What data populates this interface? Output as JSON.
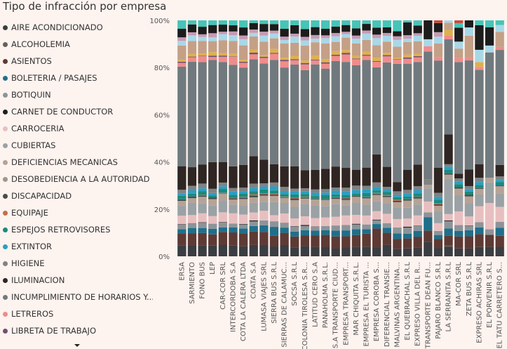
{
  "chart_data": {
    "type": "bar",
    "stacked": true,
    "normalized": true,
    "title": "Tipo de infracción por empresa",
    "xlabel": "",
    "ylabel": "",
    "ylim": [
      0,
      100
    ],
    "y_ticks": [
      "0%",
      "20%",
      "40%",
      "60%",
      "80%",
      "100%"
    ],
    "grid": false,
    "legend_position": "left",
    "categories": [
      "ERSA",
      "SARMIENTO",
      "FONO BUS",
      "LEP",
      "CAR-COR SRL",
      "INTERCORDOBA S.A",
      "COTA LA CALERA LTDA",
      "COATA S.A",
      "LUMASA VIAJES SRL",
      "SIERRA BUS S.R.L",
      "SIERRAS DE CALAMUC...",
      "SOCSA S.R.L",
      "COLONIA TIROLESA S.R...",
      "LATITUD CERO S.A",
      "PANAHOLMA S.R.L.",
      "S.A TRANSPORTE CIUD...",
      "EMPRESA TRANSPORT...",
      "MAR CHIQUITA S.R.L.",
      "EMPRESA EL TURISTA ...",
      "EMPRESA COROBA S...",
      "DIFERENCIAL TRANSIE...",
      "MALVINAS ARGENTINA...",
      "EL QUEBRACHAL S.R.L",
      "EXPRESO VILLA DEL R...",
      "TRANSPORTE DEAN FU...",
      "PAJARO BLANCO S.R.L",
      "LA SERRANITA S.R.L",
      "MA-COR SRL",
      "ZETA BUS S.R.L",
      "EXPRESO ACHIRAS SRL",
      "EL PORVENIR S.R.L",
      "EL TATU CARRETERO S..."
    ],
    "series": [
      {
        "name": "AIRE ACONDICIONADO",
        "color": "#3a3d42",
        "values": [
          4.7,
          4.7,
          4.7,
          4.6,
          4.9,
          4.7,
          4.2,
          4.7,
          4.8,
          4.2,
          4.7,
          3.8,
          4.3,
          4.1,
          3.9,
          3.3,
          3.9,
          4.1,
          4.1,
          3.6,
          5.0,
          3.3,
          3.4,
          3.8,
          6.2,
          3.7,
          4.0,
          3.4,
          3.3,
          3.8,
          4.1,
          4.1
        ]
      },
      {
        "name": "ALCOHOLEMIA",
        "color": "#6a5e57",
        "values": [
          0.0,
          0.0,
          0.0,
          0.0,
          0.0,
          0.0,
          0.0,
          0.0,
          0.0,
          0.0,
          0.0,
          0.0,
          0.0,
          0.0,
          0.0,
          0.0,
          0.0,
          0.0,
          0.0,
          0.0,
          0.0,
          0.0,
          0.0,
          0.0,
          0.0,
          0.0,
          0.6,
          0.0,
          0.0,
          0.0,
          0.0,
          0.0
        ]
      },
      {
        "name": "ASIENTOS",
        "color": "#5e3a34",
        "values": [
          5.0,
          5.0,
          5.2,
          4.8,
          5.4,
          5.4,
          5.5,
          5.6,
          5.3,
          4.6,
          5.1,
          4.7,
          4.5,
          4.8,
          5.3,
          5.2,
          4.7,
          5.0,
          5.5,
          8.3,
          5.1,
          4.4,
          4.3,
          4.6,
          4.7,
          4.0,
          4.0,
          5.2,
          5.2,
          5.2,
          5.3,
          4.8
        ]
      },
      {
        "name": "BOLETERIA / PASAJES",
        "color": "#1f6f8b",
        "values": [
          1.8,
          2.2,
          2.1,
          2.4,
          1.9,
          2.1,
          2.1,
          2.3,
          2.8,
          3.8,
          2.2,
          2.1,
          2.3,
          2.1,
          1.9,
          2.5,
          2.5,
          2.5,
          1.9,
          1.9,
          2.1,
          2.4,
          2.1,
          2.5,
          5.6,
          1.7,
          3.1,
          2.4,
          2.6,
          2.8,
          0.0,
          3.5
        ]
      },
      {
        "name": "BOTIQUIN",
        "color": "#8c9499",
        "values": [
          1.9,
          1.9,
          2.2,
          2.0,
          2.1,
          1.7,
          1.7,
          1.9,
          2.0,
          2.4,
          1.9,
          2.1,
          1.8,
          1.7,
          1.8,
          2.0,
          2.3,
          2.0,
          2.0,
          1.6,
          2.0,
          2.4,
          2.6,
          2.2,
          2.1,
          1.8,
          3.1,
          2.5,
          1.7,
          2.1,
          2.4,
          2.5
        ]
      },
      {
        "name": "CARNET DE CONDUCTOR",
        "color": "#1e1e1e",
        "values": [
          0.2,
          0.1,
          0.2,
          0.1,
          0.2,
          0.0,
          0.2,
          0.4,
          0.0,
          0.0,
          0.1,
          0.2,
          0.4,
          0.1,
          0.0,
          0.1,
          0.0,
          0.3,
          0.0,
          0.3,
          0.0,
          0.1,
          0.4,
          0.1,
          0.0,
          0.0,
          0.3,
          0.0,
          0.2,
          0.0,
          0.0,
          0.0
        ]
      },
      {
        "name": "CARROCERIA",
        "color": "#e8bfc0",
        "values": [
          3.6,
          3.4,
          3.8,
          3.3,
          4.1,
          4.3,
          4.0,
          3.3,
          4.0,
          2.6,
          3.9,
          3.3,
          3.7,
          3.6,
          3.7,
          3.8,
          4.1,
          3.8,
          3.8,
          3.6,
          4.0,
          3.8,
          3.5,
          4.3,
          4.6,
          3.4,
          2.7,
          5.9,
          3.9,
          6.5,
          11.5,
          6.5
        ]
      },
      {
        "name": "CUBIERTAS",
        "color": "#9aa2a6",
        "values": [
          4.1,
          5.1,
          4.2,
          4.5,
          5.0,
          3.7,
          3.9,
          4.0,
          3.6,
          5.6,
          4.4,
          5.0,
          5.2,
          5.5,
          4.8,
          5.4,
          4.4,
          5.1,
          4.6,
          4.2,
          4.6,
          5.1,
          4.7,
          4.7,
          5.6,
          5.2,
          15.0,
          7.0,
          5.6,
          4.8,
          9.0,
          5.7
        ]
      },
      {
        "name": "DEFICIENCIAS MECANICAS",
        "color": "#b5a396",
        "values": [
          2.1,
          2.0,
          2.5,
          2.6,
          2.7,
          2.0,
          2.5,
          2.2,
          2.4,
          2.3,
          2.1,
          2.6,
          2.2,
          2.5,
          2.4,
          2.0,
          1.9,
          2.5,
          2.4,
          2.4,
          2.2,
          2.2,
          2.7,
          2.3,
          1.5,
          2.5,
          1.6,
          2.7,
          2.9,
          2.3,
          2.0,
          2.8
        ]
      },
      {
        "name": "DESOBEDIENCIA A LA AUTORIDAD",
        "color": "#a19590",
        "values": [
          0.1,
          0.0,
          0.3,
          0.2,
          0.3,
          0.1,
          0.2,
          0.1,
          0.3,
          0.4,
          0.0,
          0.3,
          0.1,
          0.0,
          0.3,
          0.3,
          0.4,
          0.1,
          0.3,
          0.3,
          0.4,
          0.1,
          0.4,
          0.3,
          0.0,
          0.0,
          0.0,
          0.2,
          0.0,
          0.0,
          0.0,
          0.5
        ]
      },
      {
        "name": "DISCAPACIDAD",
        "color": "#4a4c4c",
        "values": [
          0.6,
          0.7,
          0.5,
          0.6,
          0.2,
          0.6,
          0.6,
          0.8,
          0.6,
          0.6,
          0.3,
          0.7,
          0.5,
          0.3,
          0.4,
          0.5,
          0.7,
          0.5,
          0.5,
          0.5,
          0.5,
          0.6,
          0.5,
          0.7,
          0.0,
          0.6,
          0.6,
          0.6,
          0.8,
          0.3,
          0.0,
          0.3
        ]
      },
      {
        "name": "EQUIPAJE",
        "color": "#c86c4a",
        "values": [
          0.1,
          0.0,
          0.3,
          0.0,
          0.1,
          0.1,
          0.3,
          0.4,
          0.4,
          0.3,
          0.2,
          0.3,
          0.3,
          0.1,
          0.1,
          0.2,
          0.2,
          0.0,
          0.1,
          0.4,
          0.4,
          0.4,
          0.1,
          0.1,
          0.0,
          0.5,
          0.0,
          0.0,
          0.0,
          0.0,
          0.0,
          0.0
        ]
      },
      {
        "name": "ESPEJOS RETROVISORES",
        "color": "#1a8a7e",
        "values": [
          1.5,
          1.2,
          1.5,
          1.0,
          1.6,
          1.3,
          1.3,
          1.3,
          1.6,
          1.4,
          1.1,
          1.4,
          1.2,
          1.1,
          1.5,
          1.2,
          1.2,
          1.0,
          1.6,
          1.1,
          1.2,
          1.2,
          1.1,
          1.4,
          0.0,
          1.5,
          1.4,
          1.3,
          1.3,
          1.3,
          0.0,
          1.4
        ]
      },
      {
        "name": "EXTINTOR",
        "color": "#2b9ec4",
        "values": [
          1.0,
          1.4,
          1.3,
          1.0,
          1.1,
          1.4,
          1.0,
          1.4,
          1.2,
          1.7,
          1.3,
          1.2,
          1.0,
          1.4,
          1.1,
          1.6,
          1.6,
          1.4,
          1.5,
          1.4,
          0.9,
          1.0,
          1.4,
          1.4,
          0.0,
          1.3,
          1.4,
          1.2,
          1.0,
          1.2,
          0.0,
          1.0
        ]
      },
      {
        "name": "HIGIENE",
        "color": "#7f8384",
        "values": [
          1.5,
          1.9,
          2.0,
          1.8,
          1.6,
          1.5,
          1.6,
          1.8,
          1.3,
          1.7,
          1.7,
          1.3,
          1.4,
          1.4,
          1.5,
          1.3,
          1.5,
          1.9,
          1.6,
          2.0,
          1.3,
          1.6,
          1.5,
          1.6,
          2.2,
          1.8,
          1.0,
          1.3,
          1.3,
          1.7,
          0.0,
          1.5
        ]
      },
      {
        "name": "ILUMINACION",
        "color": "#2f2624",
        "values": [
          10.0,
          7.8,
          8.1,
          11.4,
          8.7,
          9.2,
          9.6,
          11.4,
          9.8,
          7.8,
          8.6,
          9.6,
          7.7,
          8.4,
          8.7,
          9.0,
          8.5,
          6.8,
          7.7,
          12.0,
          8.6,
          4.0,
          8.7,
          9.3,
          0.0,
          11.1,
          12.6,
          2.0,
          7.0,
          5.5,
          0.0,
          5.0
        ]
      },
      {
        "name": "INCUMPLIMIENTO DE HORARIOS Y...",
        "color": "#707a7e",
        "values": [
          42.2,
          44.2,
          43.3,
          43.8,
          42.3,
          43.0,
          41.3,
          40.2,
          40.0,
          44.7,
          41.3,
          43.6,
          42.5,
          45.3,
          42.8,
          45.1,
          45.4,
          44.6,
          45.6,
          37.2,
          44.7,
          52.1,
          45.8,
          43.9,
          54.2,
          47.2,
          40.0,
          48.3,
          46.3,
          38.5,
          54.8,
          49.8
        ]
      },
      {
        "name": "LETREROS",
        "color": "#f08c8c",
        "values": [
          1.6,
          1.9,
          2.5,
          1.2,
          2.2,
          3.4,
          2.0,
          2.1,
          2.3,
          2.6,
          2.6,
          1.8,
          2.4,
          1.7,
          2.1,
          2.2,
          3.2,
          2.6,
          1.8,
          2.4,
          2.6,
          1.8,
          2.1,
          2.0,
          2.2,
          1.5,
          1.5,
          1.8,
          1.5,
          1.2,
          0.0,
          1.3
        ]
      },
      {
        "name": "LIBRETA DE TRABAJO",
        "color": "#74506e",
        "values": [
          0.5,
          0.3,
          0.2,
          0.6,
          0.5,
          0.2,
          0.5,
          0.7,
          0.5,
          0.4,
          0.6,
          0.4,
          0.6,
          0.3,
          0.6,
          0.5,
          0.7,
          0.3,
          0.4,
          0.3,
          0.5,
          0.2,
          0.6,
          0.5,
          0.0,
          0.0,
          0.0,
          0.0,
          0.0,
          0.0,
          0.0,
          0.0
        ]
      },
      {
        "name": "",
        "color": "#ddb14e",
        "values": [
          0.8,
          1.2,
          1.0,
          1.5,
          1.0,
          1.2,
          0.8,
          1.3,
          0.7,
          1.7,
          0.9,
          1.5,
          1.0,
          1.8,
          1.3,
          1.6,
          1.2,
          1.1,
          1.3,
          1.4,
          1.0,
          0.7,
          1.2,
          1.0,
          0.0,
          0.0,
          2.5,
          0.0,
          0.0,
          2.0,
          0.0,
          0.0
        ]
      },
      {
        "name": "",
        "color": "#c4a087",
        "values": [
          6.0,
          5.3,
          5.3,
          4.7,
          5.5,
          5.3,
          6.1,
          5.4,
          5.5,
          4.5,
          6.0,
          5.6,
          6.4,
          5.7,
          6.7,
          3.9,
          5.3,
          5.3,
          5.0,
          5.4,
          4.8,
          4.8,
          5.4,
          5.3,
          0.0,
          6.0,
          3.0,
          4.0,
          9.0,
          0.0,
          0.0,
          6.5
        ]
      },
      {
        "name": "",
        "color": "#a8d8e8",
        "values": [
          2.0,
          2.4,
          1.7,
          1.6,
          2.6,
          2.4,
          2.6,
          1.5,
          2.6,
          2.1,
          1.4,
          2.7,
          2.2,
          1.6,
          2.3,
          2.4,
          1.5,
          2.1,
          2.7,
          3.0,
          2.5,
          3.0,
          1.5,
          2.4,
          3.0,
          3.0,
          1.0,
          3.0,
          3.5,
          5.0,
          3.0,
          3.0
        ]
      },
      {
        "name": "",
        "color": "#c79ab4",
        "values": [
          1.5,
          1.3,
          1.1,
          1.8,
          1.0,
          1.6,
          1.6,
          1.4,
          1.6,
          1.2,
          1.4,
          1.2,
          1.5,
          1.5,
          1.2,
          1.4,
          1.0,
          1.3,
          1.3,
          1.5,
          1.2,
          1.6,
          1.5,
          1.1,
          0.0,
          2.0,
          0.0,
          0.0,
          0.0,
          0.0,
          0.0,
          0.0
        ]
      },
      {
        "name": "",
        "color": "#1c1c1c",
        "values": [
          3.7,
          3.3,
          3.2,
          3.5,
          3.0,
          2.6,
          3.4,
          2.7,
          3.2,
          2.8,
          3.3,
          3.6,
          3.3,
          3.4,
          2.8,
          2.7,
          2.9,
          3.1,
          2.8,
          3.0,
          2.4,
          2.2,
          5.5,
          3.3,
          8.0,
          4.0,
          0.0,
          6.0,
          3.0,
          10.0,
          8.0,
          0.0
        ]
      },
      {
        "name": "",
        "color": "#46c4b8",
        "values": [
          3.5,
          1.7,
          2.7,
          2.0,
          1.8,
          2.1,
          3.0,
          1.1,
          1.5,
          1.6,
          3.5,
          2.1,
          3.7,
          2.9,
          3.6,
          2.7,
          2.0,
          3.4,
          1.5,
          3.1,
          3.0,
          4.8,
          0.9,
          2.2,
          0.0,
          0.0,
          0.0,
          2.0,
          0.0,
          2.0,
          3.0,
          2.0
        ]
      },
      {
        "name": "",
        "color": "#c94a3c",
        "values": [
          0.0,
          0.0,
          0.0,
          0.0,
          0.0,
          0.0,
          0.0,
          0.0,
          0.0,
          0.0,
          0.0,
          0.0,
          0.0,
          0.0,
          0.0,
          0.0,
          0.0,
          0.0,
          0.0,
          0.0,
          0.0,
          0.0,
          0.0,
          0.0,
          0.0,
          1.2,
          0.0,
          1.2,
          0.0,
          0.0,
          0.0,
          0.0
        ]
      }
    ]
  }
}
